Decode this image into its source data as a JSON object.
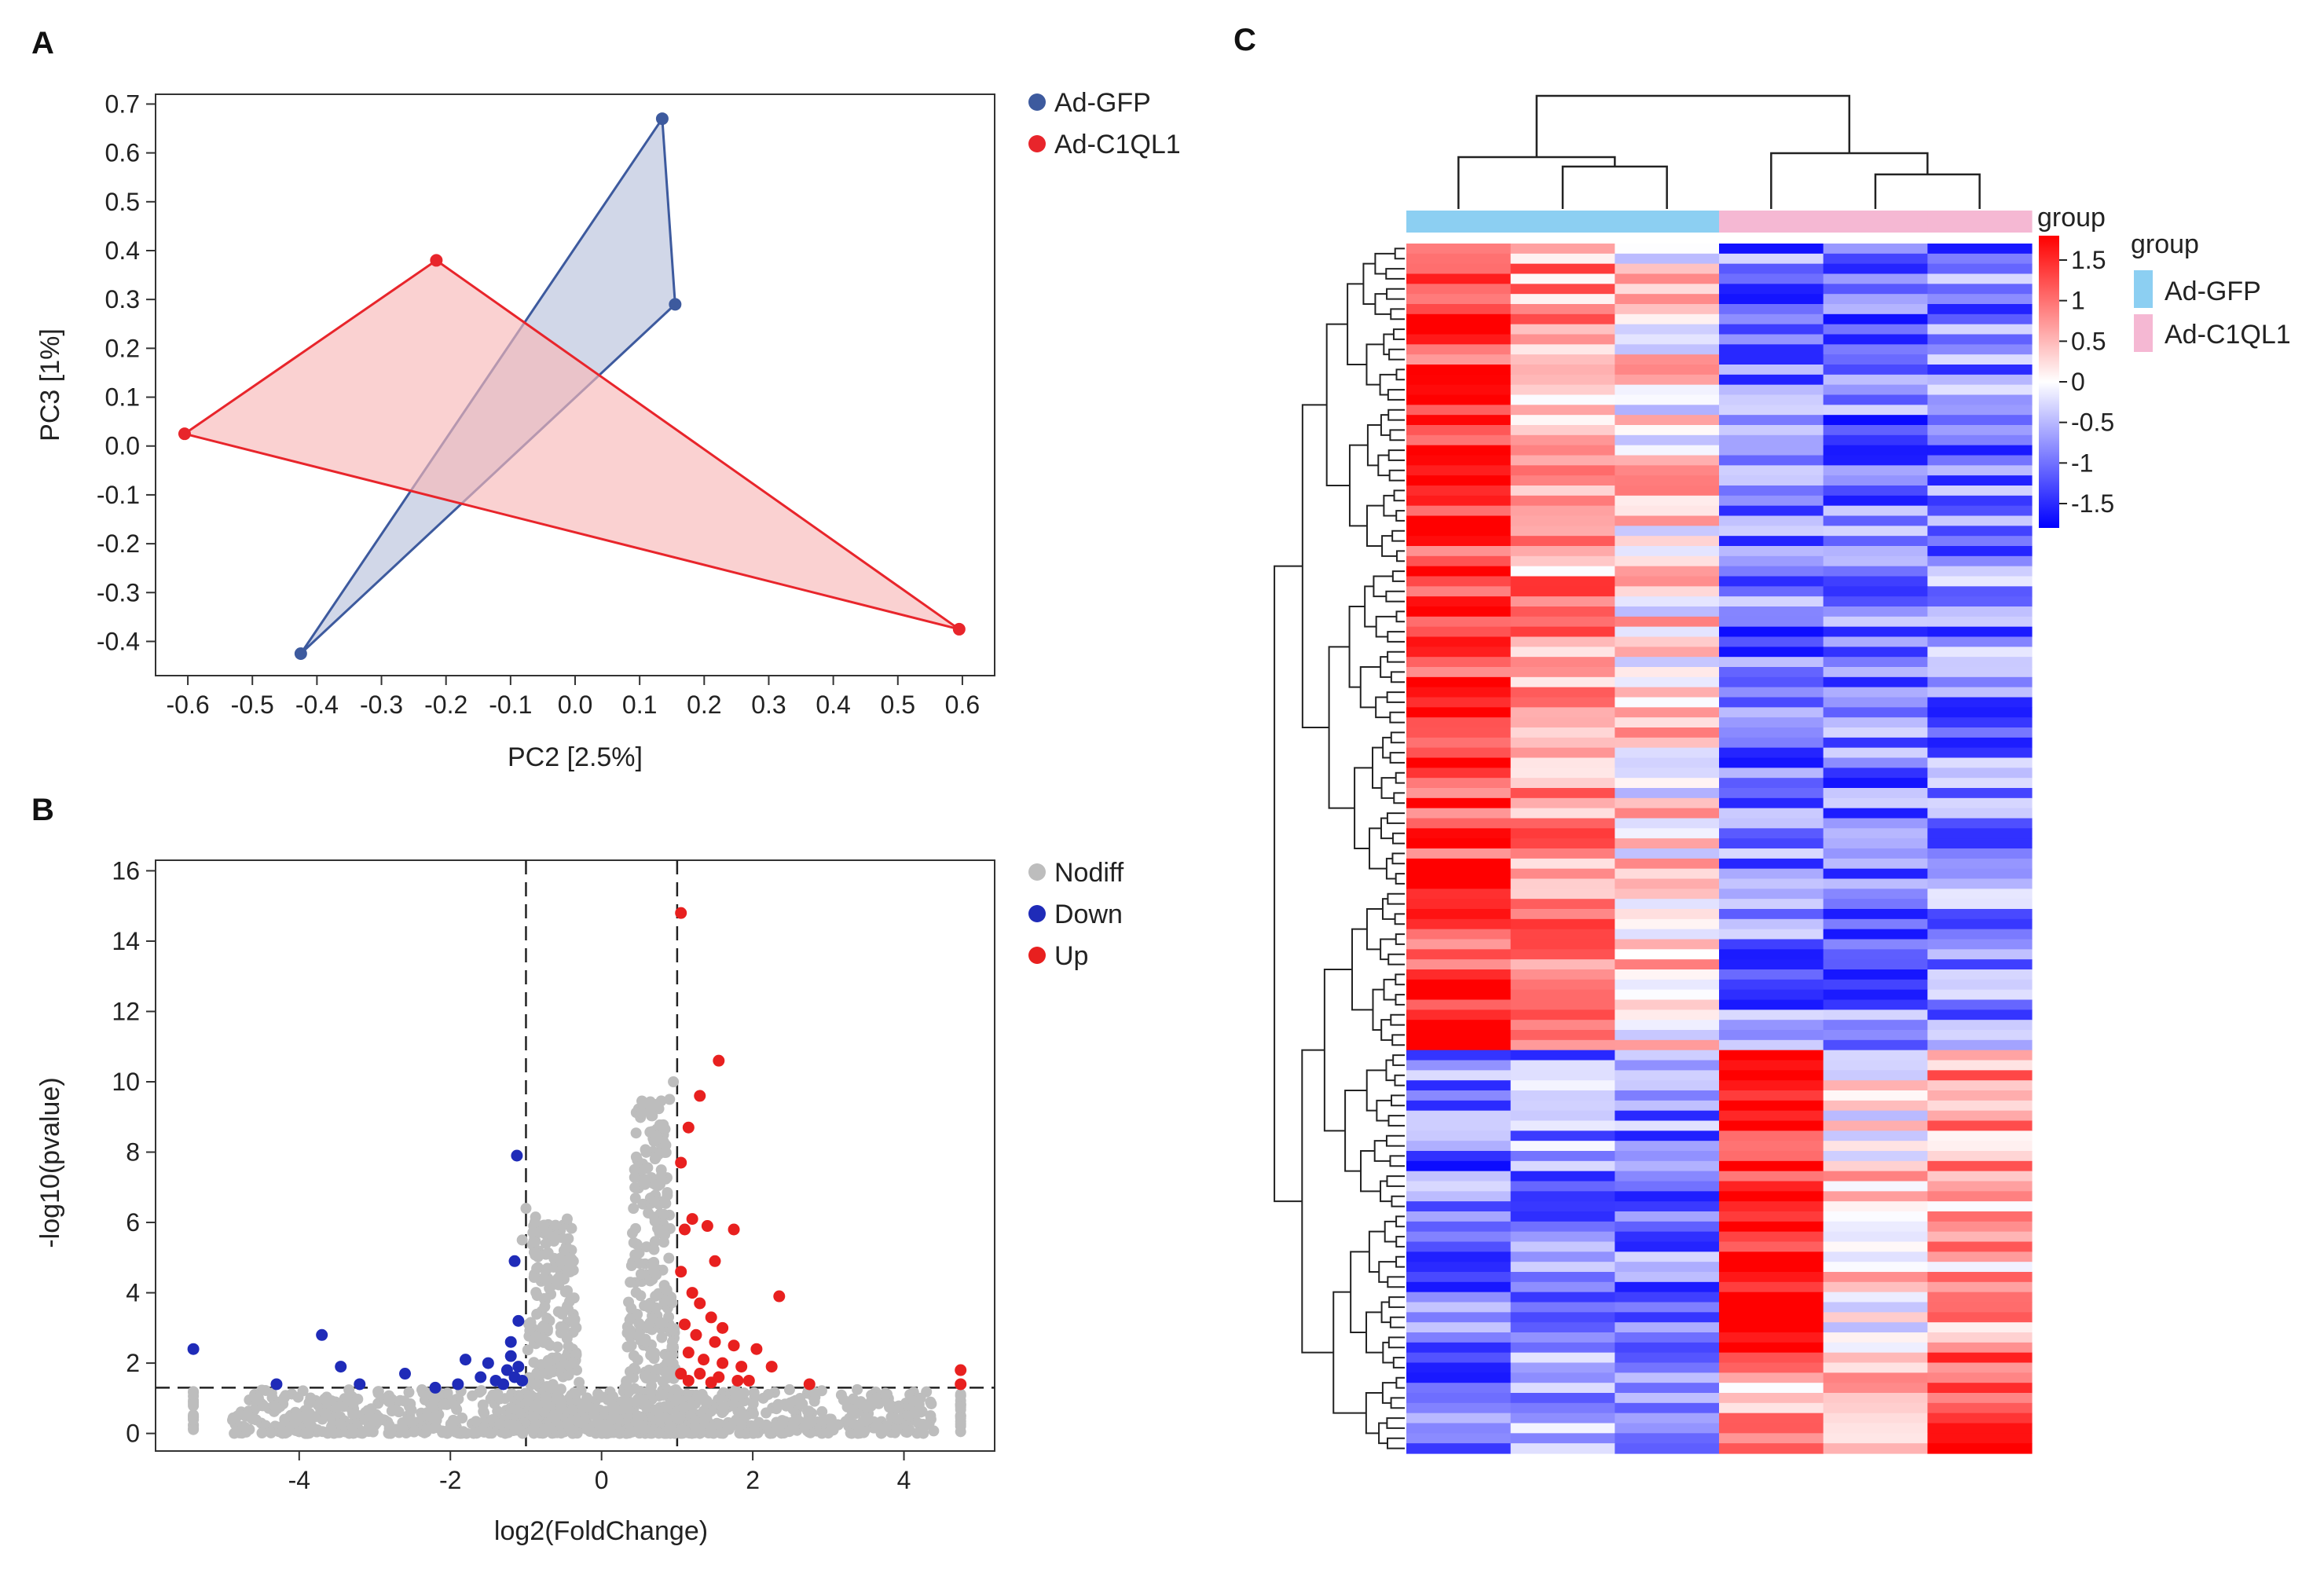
{
  "panel_labels": {
    "a": "A",
    "b": "B",
    "c": "C"
  },
  "chart_data": [
    {
      "id": "pca",
      "type": "scatter",
      "title": "",
      "xlabel": "PC2 [2.5%]",
      "ylabel": "PC3 [1%]",
      "xlim": [
        -0.65,
        0.65
      ],
      "ylim": [
        -0.47,
        0.72
      ],
      "xticks": [
        -0.6,
        -0.5,
        -0.4,
        -0.3,
        -0.2,
        -0.1,
        0.0,
        0.1,
        0.2,
        0.3,
        0.4,
        0.5,
        0.6
      ],
      "xtick_labels": [
        "-0.6",
        "-0.5",
        "-0.4",
        "-0.3",
        "-0.2",
        "-0.1",
        "0.0",
        "0.1",
        "0.2",
        "0.3",
        "0.4",
        "0.5",
        "0.6"
      ],
      "yticks": [
        0.7,
        0.6,
        0.5,
        0.4,
        0.3,
        0.2,
        0.1,
        0.0,
        -0.1,
        -0.2,
        -0.3,
        -0.4
      ],
      "ytick_labels": [
        "0.7",
        "0.6",
        "0.5",
        "0.4",
        "0.3",
        "0.2",
        "0.1",
        "0.0",
        "-0.1",
        "-0.2",
        "-0.3",
        "-0.4"
      ],
      "legend_position": "right",
      "series": [
        {
          "name": "Ad-GFP",
          "color": "#3d5a9e",
          "fill": "#b8c1dc",
          "points": [
            [
              0.135,
              0.67
            ],
            [
              0.155,
              0.29
            ],
            [
              -0.425,
              -0.425
            ]
          ]
        },
        {
          "name": "Ad-C1QL1",
          "color": "#e8252b",
          "fill": "#f7b8b8",
          "points": [
            [
              -0.605,
              0.025
            ],
            [
              -0.215,
              0.38
            ],
            [
              0.595,
              -0.375
            ]
          ]
        }
      ]
    },
    {
      "id": "volcano",
      "type": "scatter",
      "title": "",
      "xlabel": "log2(FoldChange)",
      "ylabel": "-log10(pvalue)",
      "xlim": [
        -5.9,
        5.2
      ],
      "ylim": [
        -0.5,
        16.3
      ],
      "xticks": [
        -4,
        -2,
        0,
        2,
        4
      ],
      "xtick_labels": [
        "-4",
        "-2",
        "0",
        "2",
        "4"
      ],
      "yticks": [
        0,
        2,
        4,
        6,
        8,
        10,
        12,
        14,
        16
      ],
      "ytick_labels": [
        "0",
        "2",
        "4",
        "6",
        "8",
        "10",
        "12",
        "14",
        "16"
      ],
      "thresholds": {
        "fold_change": [
          -1,
          1
        ],
        "pvalue": 1.3
      },
      "legend_position": "right",
      "series": [
        {
          "name": "Nodiff",
          "color": "#bdbdbd"
        },
        {
          "name": "Down",
          "color": "#1f2bb8",
          "points": [
            [
              -5.4,
              2.4
            ],
            [
              -4.3,
              1.4
            ],
            [
              -3.7,
              2.8
            ],
            [
              -3.45,
              1.9
            ],
            [
              -3.2,
              1.4
            ],
            [
              -2.6,
              1.7
            ],
            [
              -2.2,
              1.3
            ],
            [
              -1.9,
              1.4
            ],
            [
              -1.8,
              2.1
            ],
            [
              -1.6,
              1.6
            ],
            [
              -1.5,
              2.0
            ],
            [
              -1.4,
              1.5
            ],
            [
              -1.3,
              1.4
            ],
            [
              -1.25,
              1.8
            ],
            [
              -1.2,
              2.2
            ],
            [
              -1.15,
              1.6
            ],
            [
              -1.1,
              1.9
            ],
            [
              -1.2,
              2.6
            ],
            [
              -1.1,
              3.2
            ],
            [
              -1.15,
              4.9
            ],
            [
              -1.12,
              7.9
            ],
            [
              -1.05,
              1.5
            ]
          ]
        },
        {
          "name": "Up",
          "color": "#e8201f",
          "points": [
            [
              1.05,
              14.8
            ],
            [
              1.55,
              10.6
            ],
            [
              1.3,
              9.6
            ],
            [
              1.15,
              8.7
            ],
            [
              1.05,
              7.7
            ],
            [
              1.2,
              6.1
            ],
            [
              1.1,
              5.8
            ],
            [
              1.4,
              5.9
            ],
            [
              1.75,
              5.8
            ],
            [
              1.5,
              4.9
            ],
            [
              1.05,
              4.6
            ],
            [
              1.2,
              4.0
            ],
            [
              1.3,
              3.7
            ],
            [
              2.35,
              3.9
            ],
            [
              1.45,
              3.3
            ],
            [
              1.6,
              3.0
            ],
            [
              1.1,
              3.1
            ],
            [
              1.25,
              2.8
            ],
            [
              1.5,
              2.6
            ],
            [
              1.75,
              2.5
            ],
            [
              2.05,
              2.4
            ],
            [
              1.15,
              2.3
            ],
            [
              1.35,
              2.1
            ],
            [
              1.6,
              2.0
            ],
            [
              1.85,
              1.9
            ],
            [
              2.25,
              1.9
            ],
            [
              1.05,
              1.7
            ],
            [
              1.3,
              1.7
            ],
            [
              1.55,
              1.6
            ],
            [
              1.8,
              1.5
            ],
            [
              1.15,
              1.5
            ],
            [
              1.45,
              1.45
            ],
            [
              2.75,
              1.4
            ],
            [
              1.95,
              1.5
            ],
            [
              4.75,
              1.8
            ],
            [
              4.75,
              1.4
            ]
          ]
        }
      ]
    },
    {
      "id": "heatmap",
      "type": "heatmap",
      "title": "",
      "columns": 6,
      "rows": 120,
      "column_groups": [
        "Ad-GFP",
        "Ad-GFP",
        "Ad-GFP",
        "Ad-C1QL1",
        "Ad-C1QL1",
        "Ad-C1QL1"
      ],
      "colorbar_title": "group",
      "colorbar_range": [
        -1.8,
        1.8
      ],
      "colorbar_ticks": [
        "1.5",
        "1",
        "0.5",
        "0",
        "-0.5",
        "-1",
        "-1.5"
      ],
      "colorbar_tick_values": [
        1.5,
        1,
        0.5,
        0,
        -0.5,
        -1,
        -1.5
      ],
      "group_legend_title": "group",
      "group_legend": [
        {
          "name": "Ad-GFP",
          "color": "#8ccff2"
        },
        {
          "name": "Ad-C1QL1",
          "color": "#f5b8d3"
        }
      ],
      "blocks": [
        {
          "rows": 80,
          "base": [
            1.4,
            0.7,
            0.2,
            -1.0,
            -1.0,
            -0.9
          ]
        },
        {
          "rows": 30,
          "base": [
            -1.0,
            -0.8,
            -0.9,
            1.5,
            0.2,
            0.6
          ]
        },
        {
          "rows": 10,
          "base": [
            -1.0,
            -0.8,
            -1.0,
            0.7,
            0.8,
            1.2
          ]
        }
      ]
    }
  ]
}
